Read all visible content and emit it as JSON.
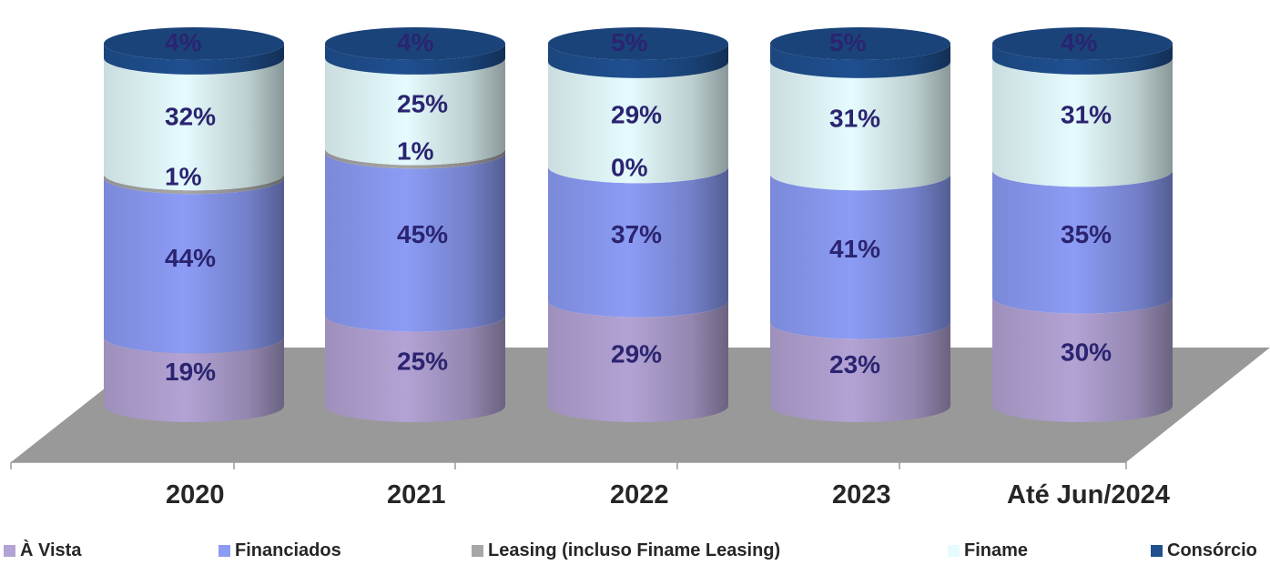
{
  "chart_data": {
    "type": "bar",
    "stacked": true,
    "percent": true,
    "style": "3d-cylinder",
    "categories": [
      "2020",
      "2021",
      "2022",
      "2023",
      "Até Jun/2024"
    ],
    "series": [
      {
        "name": "À Vista",
        "color": "#b3a3d5",
        "values": [
          19,
          25,
          29,
          23,
          30
        ],
        "labels": [
          "19%",
          "25%",
          "29%",
          "23%",
          "30%"
        ]
      },
      {
        "name": "Financiados",
        "color": "#8c9cf5",
        "values": [
          44,
          45,
          37,
          41,
          35
        ],
        "labels": [
          "44%",
          "45%",
          "37%",
          "41%",
          "35%"
        ]
      },
      {
        "name": "Leasing (incluso Finame Leasing)",
        "color": "#a6a6a6",
        "values": [
          1,
          1,
          0,
          0,
          0
        ],
        "labels": [
          "1%",
          "1%",
          "0%",
          "",
          ""
        ]
      },
      {
        "name": "Finame",
        "color": "#e5fbfd",
        "values": [
          32,
          25,
          29,
          31,
          31
        ],
        "labels": [
          "32%",
          "25%",
          "29%",
          "31%",
          "31%"
        ]
      },
      {
        "name": "Consórcio",
        "color": "#1f4f8f",
        "values": [
          4,
          4,
          5,
          5,
          4
        ],
        "labels": [
          "4%",
          "4%",
          "5%",
          "5%",
          "4%"
        ]
      }
    ],
    "ylim": [
      0,
      100
    ],
    "floor_color": "#999999",
    "legend_position": "bottom"
  }
}
